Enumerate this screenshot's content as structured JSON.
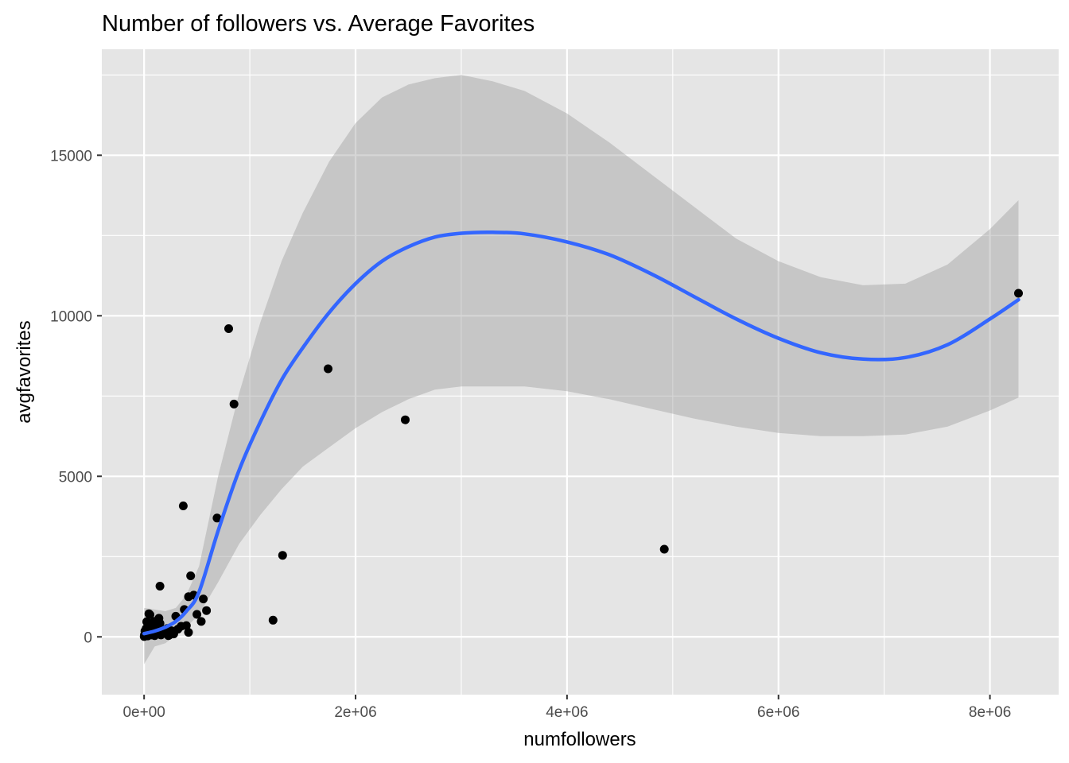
{
  "chart_data": {
    "type": "scatter",
    "title": "Number of followers vs. Average Favorites",
    "xlabel": "numfollowers",
    "ylabel": "avgfavorites",
    "xlim": [
      -400000,
      8650000
    ],
    "ylim": [
      -1800,
      18300
    ],
    "x_ticks": [
      {
        "value": 0,
        "label": "0e+00"
      },
      {
        "value": 2000000,
        "label": "2e+06"
      },
      {
        "value": 4000000,
        "label": "4e+06"
      },
      {
        "value": 6000000,
        "label": "6e+06"
      },
      {
        "value": 8000000,
        "label": "8e+06"
      }
    ],
    "x_minor": [
      1000000,
      3000000,
      5000000,
      7000000
    ],
    "y_ticks": [
      {
        "value": 0,
        "label": "0"
      },
      {
        "value": 5000,
        "label": "5000"
      },
      {
        "value": 10000,
        "label": "10000"
      },
      {
        "value": 15000,
        "label": "15000"
      }
    ],
    "y_minor": [
      2500,
      7500,
      12500,
      17500
    ],
    "grid": true,
    "colors": {
      "panel": "#e5e5e5",
      "grid": "#ffffff",
      "points": "#000000",
      "smooth_line": "#3366ff",
      "confidence_band": "#999999"
    },
    "points": [
      [
        8270000,
        10700
      ],
      [
        4920000,
        2730
      ],
      [
        2470000,
        6760
      ],
      [
        1740000,
        8350
      ],
      [
        1310000,
        2540
      ],
      [
        1220000,
        520
      ],
      [
        850000,
        7250
      ],
      [
        800000,
        9600
      ],
      [
        690000,
        3700
      ],
      [
        590000,
        820
      ],
      [
        560000,
        1180
      ],
      [
        540000,
        480
      ],
      [
        500000,
        700
      ],
      [
        470000,
        1300
      ],
      [
        440000,
        1900
      ],
      [
        420000,
        1250
      ],
      [
        420000,
        140
      ],
      [
        400000,
        350
      ],
      [
        380000,
        850
      ],
      [
        370000,
        4080
      ],
      [
        350000,
        330
      ],
      [
        320000,
        240
      ],
      [
        300000,
        640
      ],
      [
        280000,
        90
      ],
      [
        260000,
        190
      ],
      [
        240000,
        60
      ],
      [
        230000,
        40
      ],
      [
        220000,
        260
      ],
      [
        200000,
        130
      ],
      [
        190000,
        210
      ],
      [
        170000,
        110
      ],
      [
        160000,
        60
      ],
      [
        150000,
        1580
      ],
      [
        150000,
        420
      ],
      [
        140000,
        580
      ],
      [
        130000,
        280
      ],
      [
        120000,
        160
      ],
      [
        110000,
        80
      ],
      [
        100000,
        40
      ],
      [
        95000,
        480
      ],
      [
        90000,
        320
      ],
      [
        85000,
        140
      ],
      [
        80000,
        210
      ],
      [
        70000,
        60
      ],
      [
        60000,
        110
      ],
      [
        55000,
        690
      ],
      [
        50000,
        380
      ],
      [
        45000,
        720
      ],
      [
        40000,
        240
      ],
      [
        35000,
        30
      ],
      [
        30000,
        150
      ],
      [
        25000,
        470
      ],
      [
        20000,
        260
      ],
      [
        15000,
        90
      ],
      [
        10000,
        40
      ],
      [
        8000,
        180
      ],
      [
        5000,
        20
      ],
      [
        3000,
        60
      ],
      [
        1000,
        10
      ]
    ],
    "smooth": {
      "x": [
        0,
        100000,
        200000,
        300000,
        400000,
        520000,
        700000,
        900000,
        1100000,
        1300000,
        1500000,
        1750000,
        2000000,
        2250000,
        2500000,
        2750000,
        3000000,
        3300000,
        3600000,
        4000000,
        4400000,
        4800000,
        5200000,
        5600000,
        6000000,
        6400000,
        6800000,
        7200000,
        7600000,
        8000000,
        8270000
      ],
      "y": [
        100,
        180,
        300,
        480,
        800,
        1400,
        3300,
        5200,
        6700,
        8000,
        9000,
        10100,
        11000,
        11700,
        12150,
        12450,
        12570,
        12600,
        12550,
        12300,
        11900,
        11300,
        10600,
        9900,
        9300,
        8850,
        8650,
        8700,
        9100,
        9900,
        10500
      ]
    },
    "band_upper": [
      900,
      850,
      800,
      900,
      1300,
      2200,
      5000,
      7600,
      9800,
      11700,
      13200,
      14800,
      16000,
      16800,
      17200,
      17400,
      17500,
      17300,
      17000,
      16300,
      15400,
      14400,
      13400,
      12400,
      11700,
      11200,
      10950,
      11000,
      11600,
      12700,
      13600
    ],
    "band_lower": [
      -850,
      -300,
      -200,
      60,
      300,
      700,
      1700,
      2900,
      3800,
      4600,
      5300,
      5900,
      6500,
      7000,
      7400,
      7700,
      7800,
      7800,
      7800,
      7650,
      7400,
      7100,
      6800,
      6550,
      6350,
      6250,
      6250,
      6300,
      6550,
      7050,
      7450
    ]
  }
}
